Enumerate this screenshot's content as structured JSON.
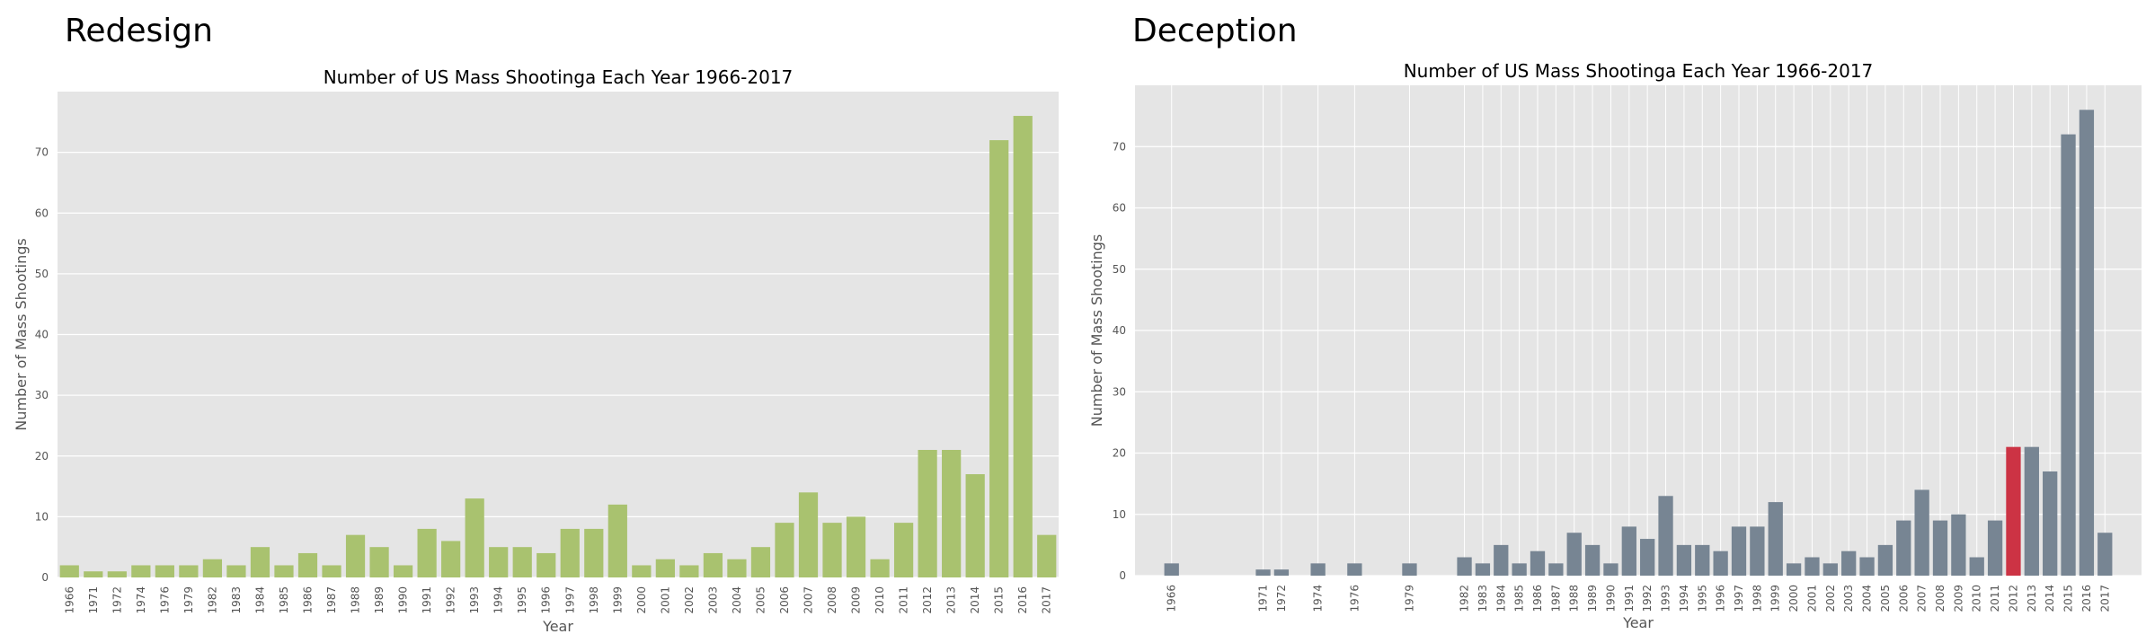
{
  "panels": [
    {
      "heading": "Redesign"
    },
    {
      "heading": "Deception"
    }
  ],
  "chart_data": [
    {
      "type": "bar",
      "title": "Number of US Mass Shootinga Each Year 1966-2017",
      "xlabel": "Year",
      "ylabel": "Number of Mass Shootings",
      "ylim": [
        0,
        80
      ],
      "yticks": [
        0,
        10,
        20,
        30,
        40,
        50,
        60,
        70
      ],
      "grid": true,
      "bar_color": "#a9c26f",
      "background": "#e5e5e5",
      "x_scale": "categorical",
      "categories": [
        "1966",
        "1971",
        "1972",
        "1974",
        "1976",
        "1979",
        "1982",
        "1983",
        "1984",
        "1985",
        "1986",
        "1987",
        "1988",
        "1989",
        "1990",
        "1991",
        "1992",
        "1993",
        "1994",
        "1995",
        "1996",
        "1997",
        "1998",
        "1999",
        "2000",
        "2001",
        "2002",
        "2003",
        "2004",
        "2005",
        "2006",
        "2007",
        "2008",
        "2009",
        "2010",
        "2011",
        "2012",
        "2013",
        "2014",
        "2015",
        "2016",
        "2017"
      ],
      "values": [
        2,
        1,
        1,
        2,
        2,
        2,
        3,
        2,
        5,
        2,
        4,
        2,
        7,
        5,
        2,
        8,
        6,
        13,
        5,
        5,
        4,
        8,
        8,
        12,
        2,
        3,
        2,
        4,
        3,
        5,
        9,
        14,
        9,
        10,
        3,
        9,
        21,
        21,
        17,
        72,
        76,
        7
      ]
    },
    {
      "type": "bar",
      "title": "Number of US Mass Shootinga Each Year 1966-2017",
      "xlabel": "Year",
      "ylabel": "Number of Mass Shootings",
      "ylim": [
        0,
        80
      ],
      "yticks": [
        0,
        10,
        20,
        30,
        40,
        50,
        60,
        70
      ],
      "grid": true,
      "bar_color": "#778593",
      "highlight_color": "#cc3344",
      "highlight_category": "2012",
      "background": "#e5e5e5",
      "x_scale": "year",
      "x_range": [
        1964,
        2019
      ],
      "categories": [
        "1966",
        "1971",
        "1972",
        "1974",
        "1976",
        "1979",
        "1982",
        "1983",
        "1984",
        "1985",
        "1986",
        "1987",
        "1988",
        "1989",
        "1990",
        "1991",
        "1992",
        "1993",
        "1994",
        "1995",
        "1996",
        "1997",
        "1998",
        "1999",
        "2000",
        "2001",
        "2002",
        "2003",
        "2004",
        "2005",
        "2006",
        "2007",
        "2008",
        "2009",
        "2010",
        "2011",
        "2012",
        "2013",
        "2014",
        "2015",
        "2016",
        "2017"
      ],
      "values": [
        2,
        1,
        1,
        2,
        2,
        2,
        3,
        2,
        5,
        2,
        4,
        2,
        7,
        5,
        2,
        8,
        6,
        13,
        5,
        5,
        4,
        8,
        8,
        12,
        2,
        3,
        2,
        4,
        3,
        5,
        9,
        14,
        9,
        10,
        3,
        9,
        21,
        21,
        17,
        72,
        76,
        7
      ]
    }
  ]
}
